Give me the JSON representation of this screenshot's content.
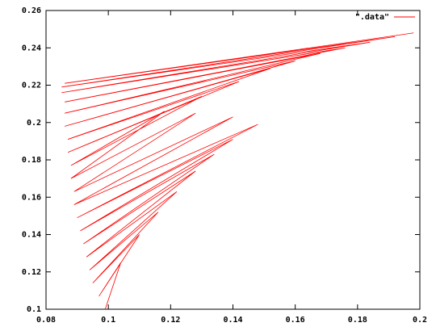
{
  "chart_data": {
    "type": "line",
    "x": [
      0.099,
      0.104,
      0.097,
      0.11,
      0.095,
      0.116,
      0.094,
      0.122,
      0.093,
      0.128,
      0.092,
      0.134,
      0.091,
      0.14,
      0.09,
      0.148,
      0.089,
      0.14,
      0.089,
      0.128,
      0.088,
      0.118,
      0.088,
      0.13,
      0.087,
      0.142,
      0.087,
      0.152,
      0.086,
      0.16,
      0.086,
      0.168,
      0.086,
      0.176,
      0.085,
      0.184,
      0.085,
      0.192,
      0.086,
      0.198
    ],
    "series": [
      {
        "name": "\".data\"",
        "color": "#ff0000",
        "values": [
          0.1,
          0.125,
          0.107,
          0.14,
          0.114,
          0.152,
          0.121,
          0.163,
          0.128,
          0.174,
          0.135,
          0.183,
          0.142,
          0.191,
          0.149,
          0.199,
          0.156,
          0.203,
          0.163,
          0.205,
          0.17,
          0.206,
          0.177,
          0.214,
          0.184,
          0.222,
          0.191,
          0.229,
          0.198,
          0.233,
          0.205,
          0.237,
          0.211,
          0.24,
          0.216,
          0.243,
          0.219,
          0.246,
          0.221,
          0.248
        ]
      }
    ],
    "xlim": [
      0.08,
      0.2
    ],
    "xticks": [
      0.08,
      0.1,
      0.12,
      0.14,
      0.16,
      0.18,
      0.2
    ],
    "ylim": [
      0.1,
      0.26
    ],
    "yticks": [
      0.1,
      0.12,
      0.14,
      0.16,
      0.18,
      0.2,
      0.22,
      0.24,
      0.26
    ],
    "legend": "top-right"
  }
}
